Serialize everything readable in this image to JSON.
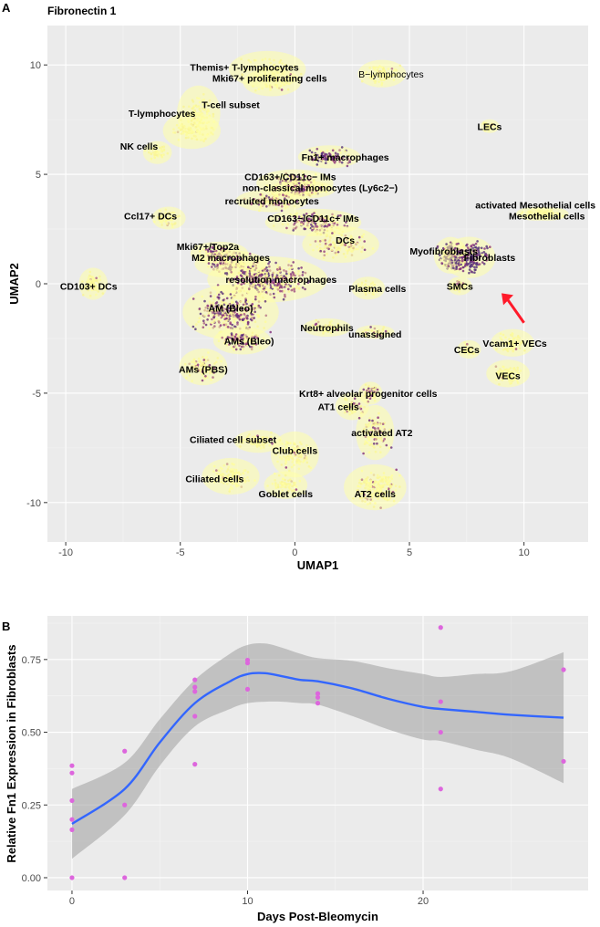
{
  "chart_data": [
    {
      "panel": "A",
      "type": "scatter",
      "title": "Fibronectin 1",
      "xlabel": "UMAP1",
      "ylabel": "UMAP2",
      "xlim": [
        -10.8,
        12.8
      ],
      "ylim": [
        -11.8,
        11.8
      ],
      "xticks": [
        -10,
        -5,
        0,
        5,
        10
      ],
      "yticks": [
        -10,
        -5,
        0,
        5,
        10
      ],
      "grid": true,
      "color_scale": [
        "#ffff9e",
        "#8e2e7a",
        "#52307a"
      ],
      "arrow": {
        "from": [
          8.9,
          -0.6
        ],
        "to": [
          9.8,
          -0.7
        ],
        "color": "#ff1a2a"
      },
      "clusters": [
        {
          "label": "Themis+ T-lymphocytes",
          "x": -1.2,
          "y": 9.8,
          "lx": -2.2,
          "ly": 9.9,
          "rx": 1.6,
          "ry": 0.8,
          "n": 70,
          "expr": 0.08
        },
        {
          "label": "Mki67+ proliferating cells",
          "x": -1.0,
          "y": 9.2,
          "lx": -1.1,
          "ly": 9.4,
          "rx": 1.2,
          "ry": 0.6,
          "n": 50,
          "expr": 0.12
        },
        {
          "label": "B−lymphocytes",
          "x": 3.8,
          "y": 9.6,
          "lx": 4.2,
          "ly": 9.6,
          "rx": 1.0,
          "ry": 0.6,
          "n": 90,
          "expr": 0.05
        },
        {
          "label": "T-cell subset",
          "x": -4.2,
          "y": 7.8,
          "lx": -2.8,
          "ly": 8.2,
          "rx": 0.9,
          "ry": 1.2,
          "n": 90,
          "expr": 0.05
        },
        {
          "label": "T-lymphocytes",
          "x": -4.5,
          "y": 7.0,
          "lx": -5.8,
          "ly": 7.8,
          "rx": 1.2,
          "ry": 0.8,
          "n": 80,
          "expr": 0.05
        },
        {
          "label": "NK cells",
          "x": -6.0,
          "y": 6.0,
          "lx": -6.8,
          "ly": 6.3,
          "rx": 0.6,
          "ry": 0.5,
          "n": 40,
          "expr": 0.05
        },
        {
          "label": "LECs",
          "x": 8.5,
          "y": 7.2,
          "lx": 8.5,
          "ly": 7.2,
          "rx": 0.4,
          "ry": 0.3,
          "n": 20,
          "expr": 0.05
        },
        {
          "label": "Fn1+ macrophages",
          "x": 1.5,
          "y": 5.8,
          "lx": 2.2,
          "ly": 5.8,
          "rx": 1.3,
          "ry": 0.5,
          "n": 110,
          "expr": 0.75
        },
        {
          "label": "CD163+/CD11c− IMs",
          "x": 0.0,
          "y": 4.6,
          "lx": -0.2,
          "ly": 4.9,
          "rx": 1.6,
          "ry": 0.6,
          "n": 130,
          "expr": 0.55
        },
        {
          "label": "non-classical monocytes (Ly6c2−)",
          "x": 0.3,
          "y": 4.3,
          "lx": 1.1,
          "ly": 4.4,
          "rx": 1.4,
          "ry": 0.4,
          "n": 90,
          "expr": 0.5
        },
        {
          "label": "recruited monocytes",
          "x": -1.0,
          "y": 3.8,
          "lx": -1.0,
          "ly": 3.8,
          "rx": 1.5,
          "ry": 0.5,
          "n": 110,
          "expr": 0.5
        },
        {
          "label": "activated Mesothelial cells",
          "x": 10.5,
          "y": 3.2,
          "lx": 10.5,
          "ly": 3.6,
          "rx": 0.8,
          "ry": 0.3,
          "n": 30,
          "expr": 0.1
        },
        {
          "label": "Mesothelial cells",
          "x": 11.0,
          "y": 3.2,
          "lx": 11.0,
          "ly": 3.1,
          "rx": 0.9,
          "ry": 0.3,
          "n": 30,
          "expr": 0.1
        },
        {
          "label": "Ccl17+ DCs",
          "x": -5.5,
          "y": 3.0,
          "lx": -6.3,
          "ly": 3.1,
          "rx": 0.7,
          "ry": 0.5,
          "n": 45,
          "expr": 0.1
        },
        {
          "label": "CD163−/CD11c+ IMs",
          "x": 0.8,
          "y": 2.8,
          "lx": 0.8,
          "ly": 3.0,
          "rx": 2.0,
          "ry": 0.6,
          "n": 160,
          "expr": 0.55
        },
        {
          "label": "DCs",
          "x": 2.0,
          "y": 1.8,
          "lx": 2.2,
          "ly": 2.0,
          "rx": 1.6,
          "ry": 0.8,
          "n": 150,
          "expr": 0.35
        },
        {
          "label": "Myofibroblasts",
          "x": 6.8,
          "y": 1.3,
          "lx": 6.5,
          "ly": 1.5,
          "rx": 0.7,
          "ry": 0.8,
          "n": 140,
          "expr": 0.85
        },
        {
          "label": "Fibroblasts",
          "x": 7.6,
          "y": 1.2,
          "lx": 8.5,
          "ly": 1.2,
          "rx": 1.1,
          "ry": 0.9,
          "n": 200,
          "expr": 0.9
        },
        {
          "label": "Mki67+/Top2a",
          "x": -3.3,
          "y": 1.4,
          "lx": -3.8,
          "ly": 1.7,
          "rx": 1.2,
          "ry": 0.5,
          "n": 90,
          "expr": 0.6
        },
        {
          "label": "M2 macrophages",
          "x": -2.8,
          "y": 0.9,
          "lx": -2.8,
          "ly": 1.2,
          "rx": 1.5,
          "ry": 0.6,
          "n": 130,
          "expr": 0.6
        },
        {
          "label": "CD103+ DCs",
          "x": -8.8,
          "y": 0.0,
          "lx": -9.0,
          "ly": -0.1,
          "rx": 0.6,
          "ry": 0.7,
          "n": 70,
          "expr": 0.1
        },
        {
          "label": "resolution macrophages",
          "x": -1.2,
          "y": 0.2,
          "lx": -0.6,
          "ly": 0.2,
          "rx": 2.5,
          "ry": 1.0,
          "n": 420,
          "expr": 0.65
        },
        {
          "label": "Plasma cells",
          "x": 3.2,
          "y": -0.2,
          "lx": 3.6,
          "ly": -0.2,
          "rx": 0.7,
          "ry": 0.5,
          "n": 40,
          "expr": 0.05
        },
        {
          "label": "SMCs",
          "x": 7.2,
          "y": -0.1,
          "lx": 7.2,
          "ly": -0.1,
          "rx": 0.5,
          "ry": 0.4,
          "n": 40,
          "expr": 0.3
        },
        {
          "label": "AM (Bleo)",
          "x": -2.8,
          "y": -1.3,
          "lx": -2.8,
          "ly": -1.1,
          "rx": 2.0,
          "ry": 1.2,
          "n": 380,
          "expr": 0.6
        },
        {
          "label": "Neutrophils",
          "x": 1.4,
          "y": -2.0,
          "lx": 1.4,
          "ly": -2.0,
          "rx": 1.0,
          "ry": 0.4,
          "n": 50,
          "expr": 0.15
        },
        {
          "label": "unassigned",
          "x": 3.5,
          "y": -2.2,
          "lx": 3.5,
          "ly": -2.3,
          "rx": 0.8,
          "ry": 0.3,
          "n": 30,
          "expr": 0.4
        },
        {
          "label": "AMs (Bleo)",
          "x": -2.3,
          "y": -2.6,
          "lx": -2.0,
          "ly": -2.6,
          "rx": 1.2,
          "ry": 0.6,
          "n": 120,
          "expr": 0.55
        },
        {
          "label": "Vcam1+ VECs",
          "x": 9.5,
          "y": -2.7,
          "lx": 9.6,
          "ly": -2.7,
          "rx": 0.9,
          "ry": 0.6,
          "n": 70,
          "expr": 0.08
        },
        {
          "label": "CECs",
          "x": 7.6,
          "y": -3.0,
          "lx": 7.5,
          "ly": -3.0,
          "rx": 0.5,
          "ry": 0.4,
          "n": 30,
          "expr": 0.05
        },
        {
          "label": "AMs (PBS)",
          "x": -4.0,
          "y": -3.8,
          "lx": -4.0,
          "ly": -3.9,
          "rx": 1.0,
          "ry": 0.8,
          "n": 110,
          "expr": 0.3
        },
        {
          "label": "VECs",
          "x": 9.3,
          "y": -4.1,
          "lx": 9.3,
          "ly": -4.2,
          "rx": 0.9,
          "ry": 0.6,
          "n": 90,
          "expr": 0.08
        },
        {
          "label": "Krt8+ alveolar progenitor cells",
          "x": 3.3,
          "y": -5.0,
          "lx": 3.2,
          "ly": -5.0,
          "rx": 0.5,
          "ry": 0.5,
          "n": 50,
          "expr": 0.45
        },
        {
          "label": "AT1 cells",
          "x": 2.5,
          "y": -5.6,
          "lx": 1.9,
          "ly": -5.6,
          "rx": 0.7,
          "ry": 0.6,
          "n": 50,
          "expr": 0.3
        },
        {
          "label": "activated AT2",
          "x": 3.5,
          "y": -6.8,
          "lx": 3.8,
          "ly": -6.8,
          "rx": 0.8,
          "ry": 1.2,
          "n": 110,
          "expr": 0.4
        },
        {
          "label": "Ciliated cell subset",
          "x": -1.6,
          "y": -7.2,
          "lx": -2.7,
          "ly": -7.1,
          "rx": 1.0,
          "ry": 0.5,
          "n": 60,
          "expr": 0.15
        },
        {
          "label": "Club cells",
          "x": 0.0,
          "y": -7.8,
          "lx": 0.0,
          "ly": -7.6,
          "rx": 1.0,
          "ry": 1.0,
          "n": 110,
          "expr": 0.15
        },
        {
          "label": "Ciliated cells",
          "x": -2.8,
          "y": -8.8,
          "lx": -3.5,
          "ly": -8.9,
          "rx": 1.2,
          "ry": 0.8,
          "n": 120,
          "expr": 0.1
        },
        {
          "label": "Goblet cells",
          "x": -0.4,
          "y": -9.2,
          "lx": -0.4,
          "ly": -9.6,
          "rx": 0.9,
          "ry": 0.6,
          "n": 60,
          "expr": 0.1
        },
        {
          "label": "AT2 cells",
          "x": 3.5,
          "y": -9.3,
          "lx": 3.5,
          "ly": -9.6,
          "rx": 1.3,
          "ry": 1.0,
          "n": 200,
          "expr": 0.15
        }
      ]
    },
    {
      "panel": "B",
      "type": "scatter",
      "xlabel": "Days Post-Bleomycin",
      "ylabel": "Relative Fn1 Expression in Fibroblasts",
      "xlim": [
        -1.4,
        29.4
      ],
      "ylim": [
        -0.044,
        0.9
      ],
      "xticks": [
        0,
        10,
        20
      ],
      "yticks": [
        0.0,
        0.25,
        0.5,
        0.75
      ],
      "ytick_labels": [
        "0.00",
        "0.25",
        "0.50",
        "0.75"
      ],
      "grid": true,
      "point_color": "#dd66dd",
      "points": [
        [
          0,
          0.385
        ],
        [
          0,
          0.36
        ],
        [
          0,
          0.265
        ],
        [
          0,
          0.2
        ],
        [
          0,
          0.165
        ],
        [
          0,
          0.0
        ],
        [
          3,
          0.435
        ],
        [
          3,
          0.25
        ],
        [
          3,
          0.0
        ],
        [
          7,
          0.68
        ],
        [
          7,
          0.655
        ],
        [
          7,
          0.64
        ],
        [
          7,
          0.555
        ],
        [
          7,
          0.39
        ],
        [
          10,
          0.748
        ],
        [
          10,
          0.738
        ],
        [
          10,
          0.648
        ],
        [
          14,
          0.633
        ],
        [
          14,
          0.62
        ],
        [
          14,
          0.6
        ],
        [
          21,
          0.86
        ],
        [
          21,
          0.605
        ],
        [
          21,
          0.5
        ],
        [
          21,
          0.305
        ],
        [
          28,
          0.715
        ],
        [
          28,
          0.4
        ]
      ],
      "smooth": {
        "color": "#3366ff",
        "x": [
          0,
          3,
          5,
          7,
          9,
          10,
          11,
          12,
          13,
          14,
          16,
          18,
          20,
          21,
          23,
          25,
          28
        ],
        "y": [
          0.185,
          0.305,
          0.465,
          0.6,
          0.675,
          0.7,
          0.703,
          0.692,
          0.68,
          0.675,
          0.65,
          0.615,
          0.587,
          0.58,
          0.57,
          0.56,
          0.55
        ],
        "lower": [
          0.065,
          0.215,
          0.385,
          0.52,
          0.58,
          0.6,
          0.605,
          0.605,
          0.6,
          0.595,
          0.555,
          0.51,
          0.475,
          0.47,
          0.44,
          0.41,
          0.325
        ],
        "upper": [
          0.305,
          0.395,
          0.545,
          0.68,
          0.77,
          0.8,
          0.805,
          0.79,
          0.77,
          0.755,
          0.745,
          0.72,
          0.7,
          0.69,
          0.7,
          0.71,
          0.775
        ]
      }
    }
  ]
}
